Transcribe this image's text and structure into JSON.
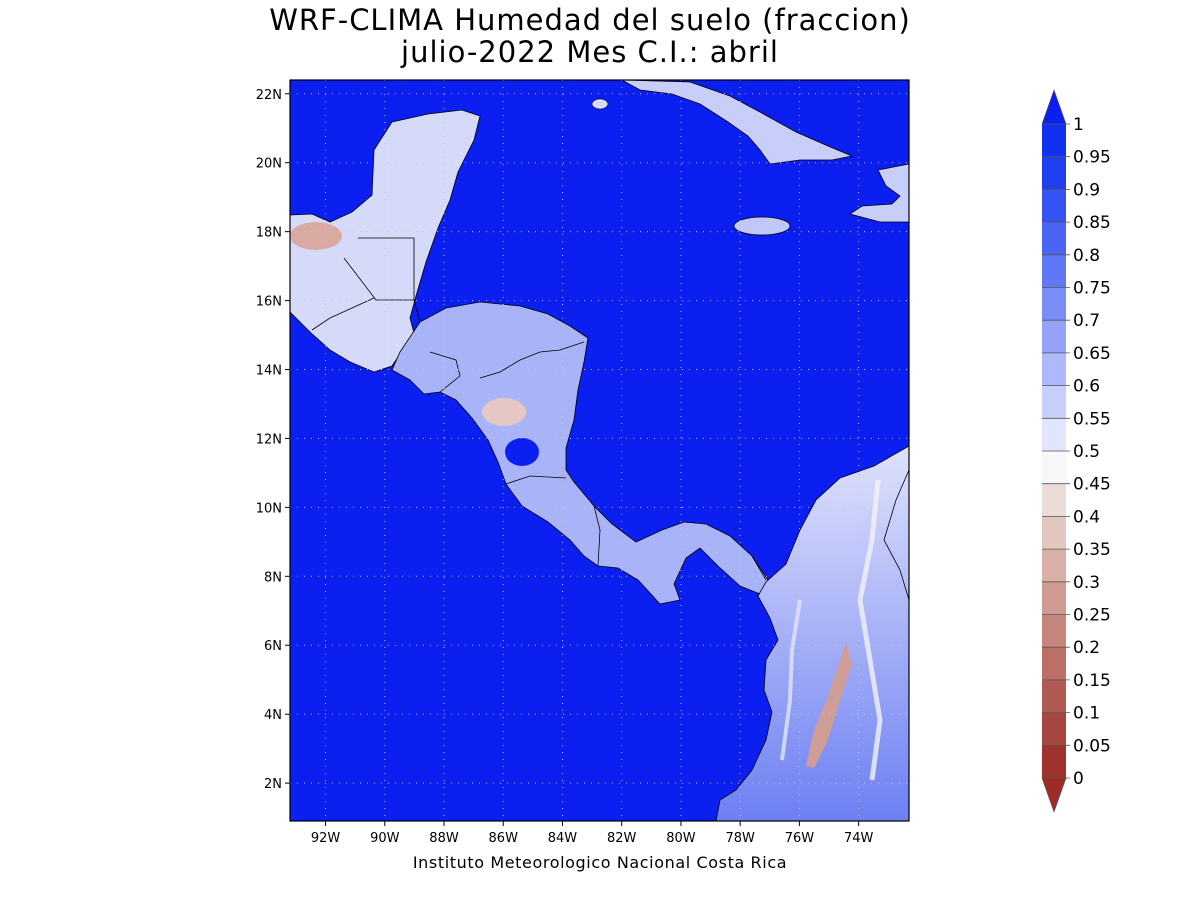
{
  "title": {
    "line1": "WRF-CLIMA Humedad del suelo (fraccion)",
    "line2": "julio-2022 Mes C.I.: abril"
  },
  "footer": "Instituto Meteorologico Nacional Costa Rica",
  "map": {
    "lon_range": [
      -93.2,
      -72.3
    ],
    "lat_range": [
      0.9,
      22.4
    ],
    "lat_ticks": [
      "22N",
      "20N",
      "18N",
      "16N",
      "14N",
      "12N",
      "10N",
      "8N",
      "6N",
      "4N",
      "2N"
    ],
    "lat_tick_values": [
      22,
      20,
      18,
      16,
      14,
      12,
      10,
      8,
      6,
      4,
      2
    ],
    "lon_ticks": [
      "92W",
      "90W",
      "88W",
      "86W",
      "84W",
      "82W",
      "80W",
      "78W",
      "76W",
      "74W"
    ],
    "lon_tick_values": [
      -92,
      -90,
      -88,
      -86,
      -84,
      -82,
      -80,
      -78,
      -76,
      -74
    ],
    "grid": "dotted",
    "ocean_color": "#0a1ff0"
  },
  "colorbar": {
    "labels": [
      "1",
      "0.95",
      "0.9",
      "0.85",
      "0.8",
      "0.75",
      "0.7",
      "0.65",
      "0.6",
      "0.55",
      "0.5",
      "0.45",
      "0.4",
      "0.35",
      "0.3",
      "0.25",
      "0.2",
      "0.15",
      "0.1",
      "0.05",
      "0"
    ],
    "colors": [
      "#1030f2",
      "#2040f0",
      "#3552f2",
      "#4a65f4",
      "#6078f5",
      "#7a8cf6",
      "#95a2f8",
      "#afb8fa",
      "#c9cffc",
      "#e2e6fd",
      "#f7f6f8",
      "#ecdcd8",
      "#e2c6c0",
      "#d8b0a8",
      "#cf9a91",
      "#c5857c",
      "#bb6f67",
      "#b15a53",
      "#a74640",
      "#9e332e"
    ],
    "top_arrow_color": "#0a1ff0",
    "bottom_arrow_color": "#9e2c26"
  }
}
